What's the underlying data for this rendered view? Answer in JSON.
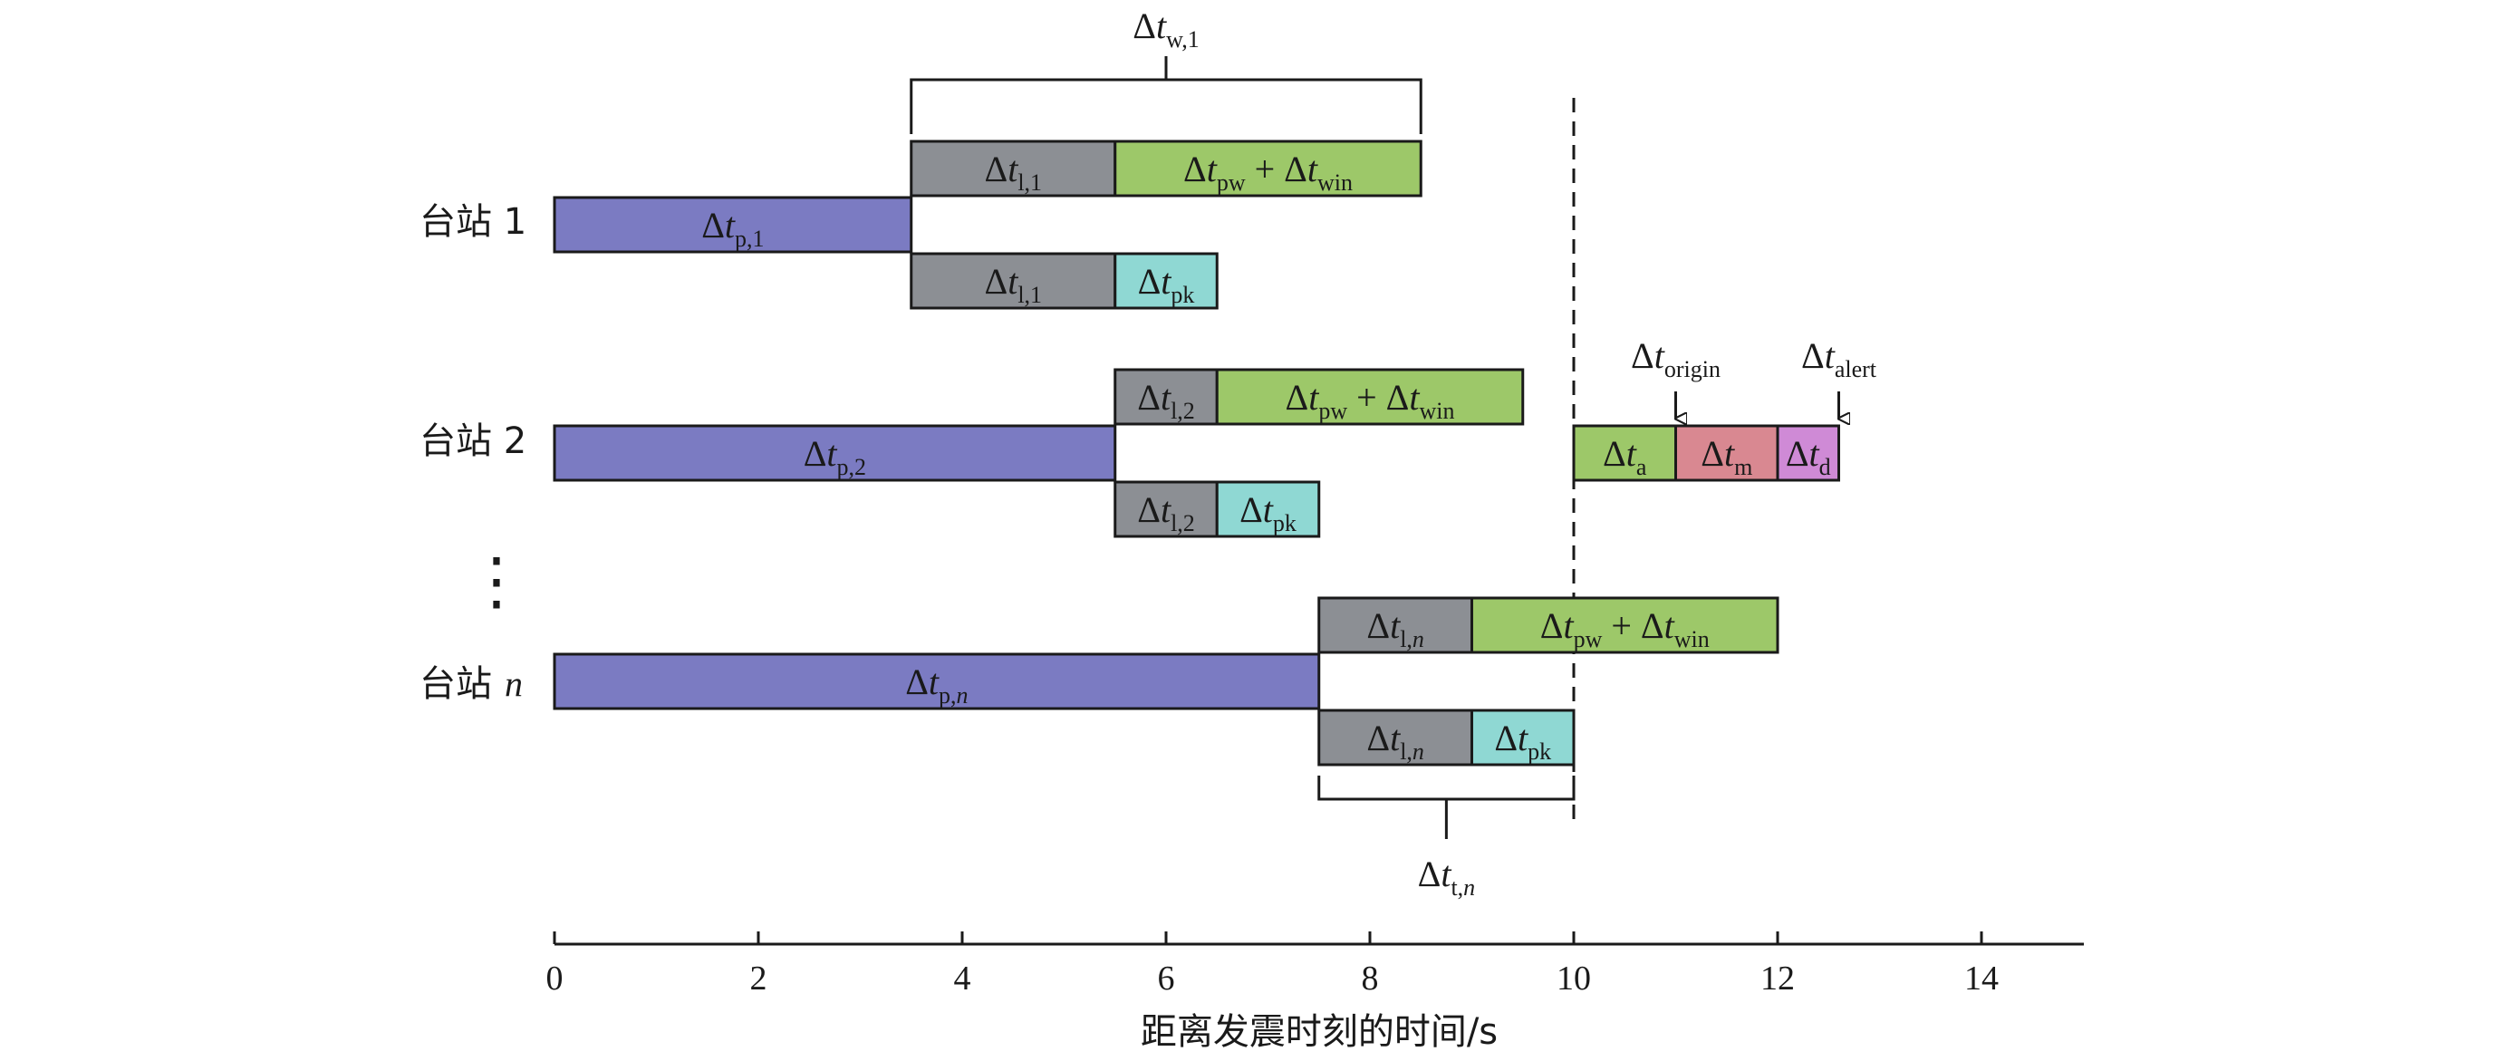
{
  "axis": {
    "label": "距离发震时刻的时间/s",
    "ticks": [
      "0",
      "2",
      "4",
      "6",
      "8",
      "10",
      "12",
      "14"
    ],
    "range": [
      0,
      15
    ]
  },
  "colors": {
    "propagation": "#7b7bc2",
    "latency": "#8c8f94",
    "window": "#9dc869",
    "pick": "#8fd8d3",
    "magnitude": "#d98891",
    "dissemination": "#cf8ad6"
  },
  "stations": [
    {
      "label": "台站 1",
      "p": {
        "end": 3.5,
        "sub": "p,1"
      },
      "latency_sub": "l,1",
      "latency": [
        3.5,
        5.5
      ],
      "window": [
        5.5,
        8.5
      ],
      "pick": [
        5.5,
        6.5
      ]
    },
    {
      "label": "台站 2",
      "p": {
        "end": 5.5,
        "sub": "p,2"
      },
      "latency_sub": "l,2",
      "latency": [
        5.5,
        6.5
      ],
      "window": [
        6.5,
        9.5
      ],
      "pick": [
        6.5,
        7.5
      ]
    },
    {
      "label": "台站",
      "label_n": "n",
      "p": {
        "end": 7.5,
        "sub": "p,",
        "sub_n": "n"
      },
      "latency_sub": "l,",
      "latency_sub_n": "n",
      "latency": [
        7.5,
        9.0
      ],
      "window": [
        9.0,
        12.0
      ],
      "pick": [
        9.0,
        10.0
      ]
    }
  ],
  "symbols": {
    "delta_t": "Δt",
    "pw_win_sub1": "pw",
    "plus": "+",
    "pw_win_sub2": "win",
    "pk_sub": "pk"
  },
  "brace_top": {
    "symbol": "Δt",
    "sub": "w,1",
    "range": [
      3.5,
      8.5
    ]
  },
  "brace_bottom": {
    "symbol": "Δt",
    "sub": "t,",
    "sub_n": "n",
    "range": [
      7.5,
      10.0
    ]
  },
  "alert_chain": {
    "segments": [
      {
        "sub": "a",
        "range": [
          10,
          11
        ],
        "color_key": "window"
      },
      {
        "sub": "m",
        "range": [
          11,
          12
        ],
        "color_key": "magnitude"
      },
      {
        "sub": "d",
        "range": [
          12,
          12.6
        ],
        "color_key": "dissemination"
      }
    ],
    "origin": {
      "symbol": "Δt",
      "sub": "origin",
      "at": 11
    },
    "alert": {
      "symbol": "Δt",
      "sub": "alert",
      "at": 12.6
    }
  },
  "dashed_line_at": 10,
  "ellipsis": "⋮"
}
